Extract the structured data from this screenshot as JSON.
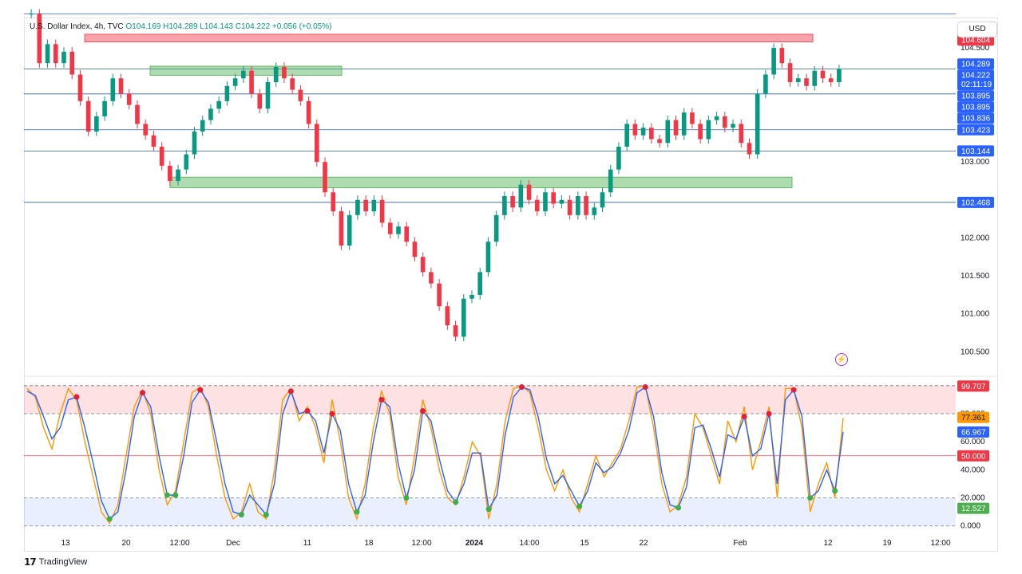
{
  "legend": {
    "symbol": "U.S. Dollar Index, 4h, TVC",
    "ohlc": "O104.169  H104.289  L104.143  C104.222  +0.056 (+0.05%)"
  },
  "currency_button": "USD",
  "brand": "TradingView",
  "chart_data": [
    {
      "type": "candlestick",
      "title": "U.S. Dollar Index, 4h, TVC",
      "ylim": [
        100.2,
        104.9
      ],
      "y_ticks": [
        100.5,
        101.0,
        101.5,
        102.0,
        102.5,
        103.0,
        103.5,
        104.0,
        104.5
      ],
      "y_tick_labels": [
        "100.500",
        "101.000",
        "101.500",
        "102.000",
        "",
        "103.000",
        "",
        "",
        "104.500"
      ],
      "x_tick_labels": [
        "13",
        "20",
        "12:00",
        "Dec",
        "11",
        "18",
        "12:00",
        "2024",
        "14:00",
        "15",
        "22",
        "Feb",
        "12",
        "19",
        "12:00"
      ],
      "horizontal_lines": [
        104.95,
        104.222,
        103.895,
        103.423,
        103.144,
        102.468
      ],
      "price_labels": [
        {
          "value": 104.604,
          "text": "104.604",
          "color": "#f23645"
        },
        {
          "value": 104.289,
          "text": "104.289",
          "color": "#2962ff"
        },
        {
          "value": 104.222,
          "text": "104.222",
          "sub": "02:11:19",
          "color": "#2962ff"
        },
        {
          "value": 103.895,
          "text": "103.895",
          "color": "#2962ff"
        },
        {
          "value": 103.895,
          "text": "103.895",
          "color": "#2962ff"
        },
        {
          "value": 103.836,
          "text": "103.836",
          "color": "#2962ff"
        },
        {
          "value": 103.423,
          "text": "103.423",
          "color": "#2962ff"
        },
        {
          "value": 103.144,
          "text": "103.144",
          "color": "#2962ff"
        },
        {
          "value": 102.468,
          "text": "102.468",
          "color": "#2962ff"
        }
      ],
      "zones": [
        {
          "kind": "supply",
          "from": 104.58,
          "to": 104.68,
          "color": "#f23645"
        },
        {
          "kind": "demand",
          "from": 104.14,
          "to": 104.26,
          "color": "#4caf50"
        },
        {
          "kind": "demand",
          "from": 102.66,
          "to": 102.8,
          "color": "#4caf50"
        }
      ],
      "series": [
        {
          "values": [
            104.95,
            104.3,
            104.55,
            104.3,
            104.45,
            104.15,
            103.8,
            103.4,
            103.6,
            103.8,
            104.1,
            103.9,
            103.75,
            103.5,
            103.35,
            103.2,
            102.95,
            102.75,
            102.9,
            103.1,
            103.4,
            103.55,
            103.7,
            103.8,
            104.0,
            104.1,
            104.2,
            103.9,
            103.7,
            104.05,
            104.25,
            104.1,
            103.95,
            103.8,
            103.5,
            103.0,
            102.6,
            102.35,
            101.9,
            102.3,
            102.5,
            102.35,
            102.5,
            102.2,
            102.05,
            102.15,
            101.95,
            101.75,
            101.55,
            101.4,
            101.1,
            100.85,
            100.7,
            101.2,
            101.25,
            101.55,
            101.95,
            102.3,
            102.55,
            102.4,
            102.7,
            102.5,
            102.35,
            102.6,
            102.45,
            102.5,
            102.3,
            102.55,
            102.3,
            102.4,
            102.6,
            102.9,
            103.2,
            103.5,
            103.35,
            103.45,
            103.3,
            103.25,
            103.55,
            103.35,
            103.65,
            103.5,
            103.3,
            103.55,
            103.6,
            103.45,
            103.5,
            103.25,
            103.1,
            103.9,
            104.15,
            104.5,
            104.3,
            104.05,
            104.1,
            104.0,
            104.2,
            104.1,
            104.05,
            104.22
          ]
        }
      ]
    },
    {
      "type": "line",
      "title": "Stochastic",
      "ylim": [
        -3,
        105
      ],
      "y_ticks": [
        0,
        20,
        40,
        60,
        80
      ],
      "y_tick_labels": [
        "0.000",
        "20.000",
        "40.000",
        "60.000",
        "80.000"
      ],
      "levels": [
        20,
        50,
        80,
        100
      ],
      "price_labels": [
        {
          "value": 99.707,
          "text": "99.707",
          "color": "#f23645"
        },
        {
          "value": 77.361,
          "text": "77.361",
          "color": "#ff9800"
        },
        {
          "value": 66.967,
          "text": "66.967",
          "color": "#2962ff"
        },
        {
          "value": 50.0,
          "text": "50.000",
          "color": "#f23645"
        },
        {
          "value": 12.527,
          "text": "12.527",
          "color": "#4caf50"
        }
      ],
      "series": [
        {
          "name": "%K",
          "color": "#ff9800",
          "values": [
            98,
            92,
            70,
            55,
            80,
            98,
            90,
            60,
            35,
            10,
            2,
            15,
            50,
            85,
            97,
            80,
            40,
            15,
            25,
            60,
            95,
            99,
            85,
            50,
            20,
            5,
            10,
            30,
            10,
            5,
            40,
            90,
            98,
            75,
            85,
            70,
            45,
            90,
            60,
            20,
            5,
            30,
            70,
            96,
            80,
            35,
            15,
            50,
            90,
            70,
            40,
            20,
            15,
            35,
            60,
            50,
            5,
            30,
            75,
            98,
            100,
            95,
            70,
            40,
            25,
            40,
            20,
            10,
            30,
            50,
            35,
            45,
            55,
            75,
            99,
            100,
            70,
            30,
            10,
            15,
            35,
            80,
            70,
            50,
            30,
            75,
            60,
            85,
            40,
            60,
            85,
            20,
            98,
            98,
            70,
            10,
            30,
            45,
            20,
            77
          ]
        },
        {
          "name": "%D",
          "color": "#2962ff",
          "values": [
            96,
            93,
            78,
            62,
            70,
            90,
            92,
            70,
            45,
            18,
            5,
            10,
            40,
            78,
            95,
            85,
            50,
            22,
            22,
            50,
            88,
            97,
            88,
            60,
            30,
            10,
            8,
            22,
            15,
            8,
            30,
            80,
            96,
            80,
            82,
            75,
            52,
            80,
            68,
            30,
            10,
            22,
            60,
            90,
            85,
            45,
            20,
            40,
            82,
            75,
            48,
            25,
            17,
            30,
            52,
            52,
            12,
            22,
            65,
            92,
            99,
            97,
            78,
            48,
            30,
            36,
            25,
            14,
            25,
            45,
            38,
            42,
            52,
            68,
            95,
            99,
            78,
            38,
            15,
            13,
            28,
            70,
            72,
            55,
            35,
            65,
            62,
            78,
            50,
            55,
            80,
            30,
            90,
            97,
            78,
            20,
            25,
            40,
            25,
            67
          ]
        }
      ]
    }
  ]
}
